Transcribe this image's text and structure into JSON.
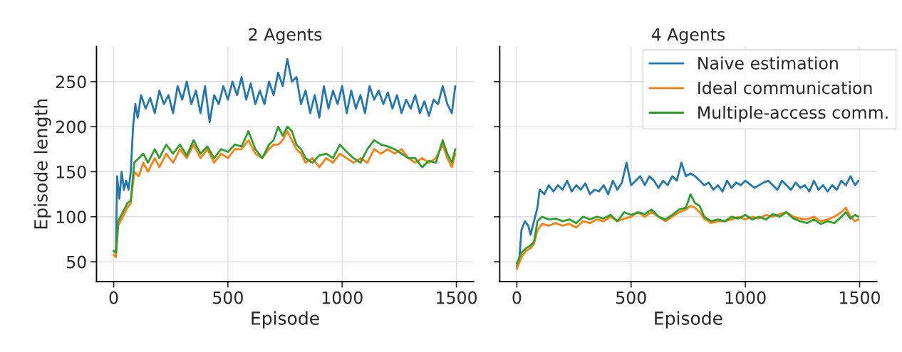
{
  "chart_data": [
    {
      "type": "line",
      "title": "2 Agents",
      "xlabel": "Episode",
      "ylabel": "Episode length",
      "xlim": [
        -75,
        1575
      ],
      "ylim": [
        28,
        289
      ],
      "xticks": [
        0,
        500,
        1000,
        1500
      ],
      "yticks": [
        50,
        100,
        150,
        200,
        250
      ],
      "grid": true,
      "legend": false,
      "series": [
        {
          "color": "#1f77b4",
          "x": [
            0,
            10,
            15,
            25,
            35,
            45,
            55,
            65,
            75,
            85,
            95,
            105,
            120,
            140,
            160,
            180,
            200,
            220,
            240,
            260,
            280,
            300,
            320,
            340,
            360,
            380,
            400,
            420,
            440,
            460,
            480,
            500,
            520,
            540,
            560,
            580,
            600,
            620,
            640,
            660,
            680,
            700,
            720,
            740,
            760,
            780,
            800,
            820,
            840,
            860,
            880,
            900,
            920,
            940,
            960,
            980,
            1000,
            1020,
            1040,
            1060,
            1080,
            1100,
            1120,
            1140,
            1160,
            1180,
            1200,
            1220,
            1240,
            1260,
            1280,
            1300,
            1320,
            1340,
            1360,
            1380,
            1400,
            1420,
            1440,
            1460,
            1480,
            1495
          ],
          "values": [
            62,
            60,
            145,
            120,
            150,
            130,
            140,
            130,
            150,
            200,
            225,
            210,
            235,
            220,
            232,
            215,
            240,
            225,
            235,
            215,
            245,
            230,
            250,
            225,
            240,
            215,
            245,
            205,
            235,
            225,
            245,
            230,
            250,
            235,
            255,
            230,
            248,
            225,
            240,
            225,
            250,
            235,
            260,
            245,
            275,
            250,
            255,
            225,
            240,
            215,
            235,
            210,
            245,
            220,
            240,
            225,
            245,
            215,
            240,
            220,
            235,
            215,
            245,
            230,
            240,
            225,
            238,
            220,
            235,
            215,
            230,
            220,
            235,
            215,
            228,
            212,
            230,
            225,
            245,
            225,
            215,
            245
          ]
        },
        {
          "color": "#ff7f0e",
          "x": [
            0,
            10,
            20,
            40,
            60,
            75,
            90,
            110,
            130,
            150,
            180,
            200,
            230,
            260,
            290,
            320,
            350,
            380,
            410,
            440,
            470,
            500,
            530,
            560,
            590,
            620,
            650,
            680,
            700,
            720,
            740,
            760,
            780,
            800,
            820,
            840,
            870,
            900,
            930,
            960,
            990,
            1020,
            1050,
            1080,
            1110,
            1140,
            1170,
            1200,
            1230,
            1260,
            1290,
            1320,
            1350,
            1380,
            1410,
            1440,
            1460,
            1480,
            1495
          ],
          "values": [
            58,
            55,
            90,
            100,
            110,
            115,
            150,
            145,
            160,
            150,
            165,
            155,
            170,
            160,
            175,
            165,
            180,
            165,
            175,
            160,
            170,
            165,
            175,
            175,
            185,
            170,
            165,
            175,
            180,
            180,
            185,
            195,
            185,
            175,
            170,
            160,
            165,
            155,
            165,
            160,
            170,
            165,
            160,
            165,
            160,
            175,
            170,
            175,
            170,
            175,
            165,
            160,
            165,
            160,
            165,
            180,
            165,
            155,
            170
          ]
        },
        {
          "color": "#2ca02c",
          "x": [
            0,
            10,
            20,
            40,
            60,
            75,
            90,
            110,
            130,
            150,
            180,
            200,
            230,
            260,
            290,
            320,
            350,
            380,
            410,
            440,
            470,
            500,
            530,
            560,
            590,
            620,
            650,
            680,
            700,
            720,
            740,
            760,
            780,
            800,
            820,
            840,
            870,
            900,
            930,
            960,
            990,
            1020,
            1050,
            1080,
            1110,
            1140,
            1170,
            1200,
            1230,
            1260,
            1290,
            1320,
            1350,
            1380,
            1410,
            1440,
            1460,
            1480,
            1495
          ],
          "values": [
            62,
            60,
            95,
            105,
            115,
            118,
            160,
            165,
            170,
            160,
            175,
            165,
            180,
            170,
            180,
            168,
            185,
            170,
            178,
            165,
            175,
            172,
            180,
            178,
            195,
            175,
            165,
            180,
            185,
            200,
            190,
            200,
            195,
            180,
            175,
            165,
            160,
            168,
            170,
            165,
            180,
            172,
            165,
            160,
            175,
            185,
            180,
            178,
            175,
            170,
            165,
            165,
            155,
            162,
            160,
            185,
            170,
            160,
            175
          ]
        }
      ]
    },
    {
      "type": "line",
      "title": "4 Agents",
      "xlabel": "Episode",
      "xlim": [
        -75,
        1575
      ],
      "ylim": [
        28,
        289
      ],
      "xticks": [
        0,
        500,
        1000,
        1500
      ],
      "yticks": [
        50,
        100,
        150,
        200,
        250
      ],
      "tick_labels": "x",
      "grid": true,
      "legend": "top right",
      "series": [
        {
          "name": "Naive estimation",
          "color": "#1f77b4",
          "x": [
            0,
            10,
            20,
            35,
            50,
            60,
            75,
            90,
            100,
            120,
            140,
            160,
            180,
            200,
            220,
            240,
            260,
            280,
            300,
            320,
            340,
            360,
            380,
            400,
            420,
            440,
            460,
            480,
            500,
            520,
            540,
            560,
            580,
            600,
            620,
            640,
            660,
            680,
            700,
            720,
            740,
            760,
            780,
            800,
            820,
            840,
            860,
            880,
            900,
            920,
            940,
            960,
            980,
            1000,
            1040,
            1080,
            1100,
            1120,
            1140,
            1160,
            1180,
            1200,
            1220,
            1240,
            1260,
            1280,
            1300,
            1320,
            1340,
            1360,
            1380,
            1400,
            1420,
            1440,
            1460,
            1480,
            1495
          ],
          "values": [
            45,
            50,
            85,
            95,
            90,
            80,
            95,
            110,
            130,
            125,
            135,
            128,
            135,
            130,
            140,
            128,
            135,
            130,
            137,
            125,
            130,
            128,
            135,
            125,
            140,
            130,
            138,
            160,
            135,
            140,
            145,
            135,
            145,
            140,
            132,
            140,
            135,
            145,
            140,
            160,
            145,
            148,
            145,
            140,
            135,
            138,
            130,
            135,
            128,
            140,
            132,
            138,
            135,
            140,
            132,
            138,
            140,
            135,
            130,
            140,
            135,
            130,
            138,
            132,
            135,
            128,
            140,
            130,
            135,
            128,
            135,
            130,
            140,
            135,
            145,
            135,
            140
          ]
        },
        {
          "name": "Ideal communication",
          "color": "#ff7f0e",
          "x": [
            0,
            20,
            40,
            60,
            75,
            90,
            110,
            140,
            170,
            200,
            230,
            260,
            290,
            320,
            350,
            380,
            410,
            440,
            470,
            500,
            530,
            560,
            590,
            620,
            650,
            680,
            710,
            740,
            760,
            780,
            800,
            820,
            850,
            880,
            910,
            940,
            970,
            1000,
            1030,
            1060,
            1090,
            1120,
            1150,
            1180,
            1210,
            1240,
            1270,
            1300,
            1330,
            1360,
            1390,
            1420,
            1440,
            1460,
            1480,
            1495
          ],
          "values": [
            42,
            55,
            62,
            65,
            70,
            85,
            92,
            90,
            93,
            90,
            92,
            88,
            95,
            93,
            97,
            95,
            100,
            95,
            98,
            100,
            105,
            100,
            105,
            100,
            95,
            100,
            105,
            108,
            112,
            110,
            105,
            98,
            93,
            95,
            95,
            97,
            100,
            97,
            100,
            98,
            102,
            100,
            103,
            105,
            100,
            98,
            97,
            100,
            95,
            97,
            100,
            105,
            110,
            100,
            95,
            97
          ]
        },
        {
          "name": "Multiple-access comm.",
          "color": "#2ca02c",
          "x": [
            0,
            20,
            40,
            60,
            75,
            90,
            110,
            140,
            170,
            200,
            230,
            260,
            290,
            320,
            350,
            380,
            410,
            440,
            470,
            500,
            530,
            560,
            590,
            620,
            650,
            680,
            710,
            740,
            760,
            780,
            800,
            820,
            850,
            880,
            910,
            940,
            970,
            1000,
            1030,
            1060,
            1090,
            1120,
            1150,
            1180,
            1210,
            1240,
            1270,
            1300,
            1330,
            1360,
            1390,
            1420,
            1440,
            1460,
            1480,
            1495
          ],
          "values": [
            48,
            60,
            65,
            68,
            72,
            95,
            100,
            97,
            98,
            95,
            97,
            93,
            100,
            97,
            100,
            98,
            102,
            95,
            105,
            102,
            105,
            103,
            108,
            100,
            97,
            102,
            108,
            110,
            125,
            115,
            112,
            100,
            95,
            97,
            95,
            100,
            98,
            102,
            97,
            100,
            97,
            103,
            100,
            105,
            98,
            95,
            93,
            97,
            92,
            95,
            93,
            100,
            105,
            98,
            102,
            100
          ]
        }
      ]
    }
  ]
}
